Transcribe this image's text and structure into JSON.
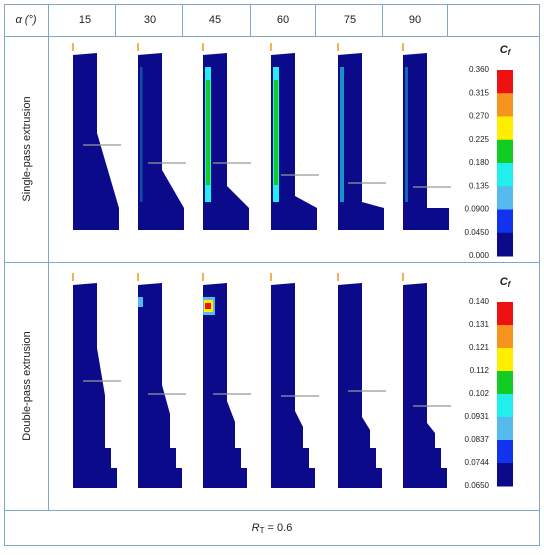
{
  "header": {
    "angle_label": "α (°)",
    "angles": [
      "15",
      "30",
      "45",
      "60",
      "75",
      "90"
    ]
  },
  "rows": [
    {
      "label": "Single-pass extrusion",
      "legend": {
        "symbol": "C",
        "subscript": "f",
        "ticks": [
          "0.360",
          "0.315",
          "0.270",
          "0.225",
          "0.180",
          "0.135",
          "0.0900",
          "0.0450",
          "0.000"
        ]
      }
    },
    {
      "label": "Double-pass extrusion",
      "legend": {
        "symbol": "C",
        "subscript": "f",
        "ticks": [
          "0.140",
          "0.131",
          "0.121",
          "0.112",
          "0.102",
          "0.0931",
          "0.0837",
          "0.0744",
          "0.0650"
        ]
      }
    }
  ],
  "legend_colors": [
    "#ee1111",
    "#f7941d",
    "#ffee00",
    "#11cc22",
    "#22eeee",
    "#55bbee",
    "#1133ee",
    "#0a0a8a"
  ],
  "footer": {
    "symbol": "R",
    "subscript": "T",
    "text": " = 0.6"
  }
}
